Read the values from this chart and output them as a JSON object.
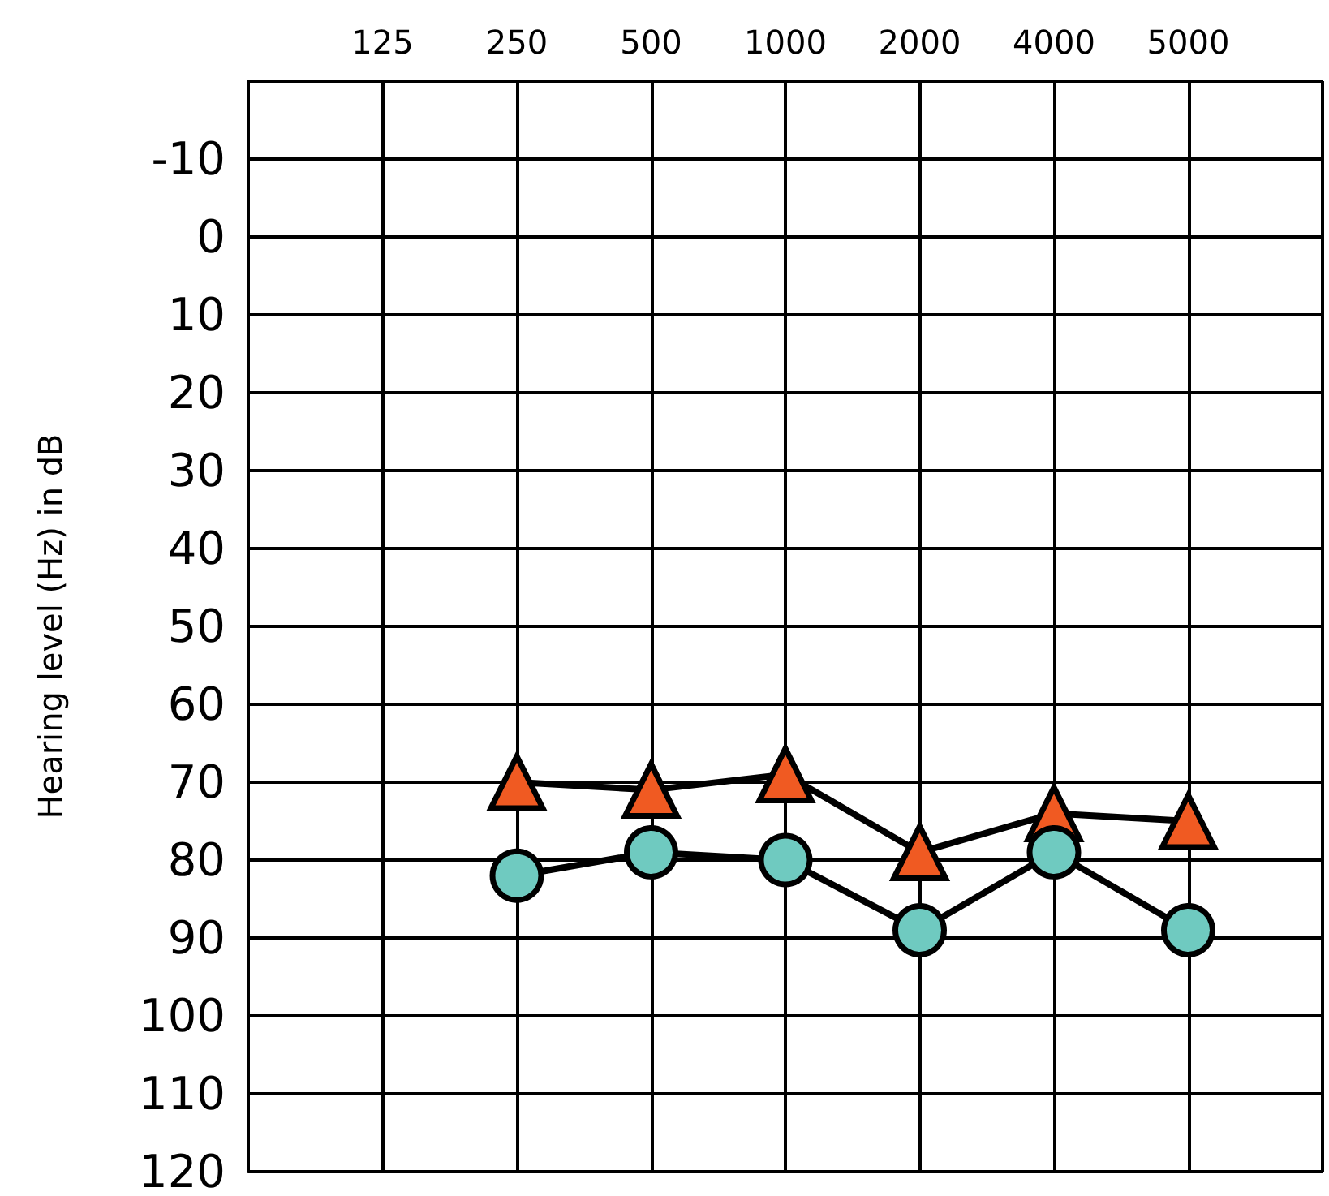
{
  "chart_data": {
    "type": "line",
    "ylabel": "Hearing level (Hz) in dB",
    "categories": [
      null,
      "125",
      "250",
      "500",
      "1000",
      "2000",
      "4000",
      "5000",
      null
    ],
    "series": [
      {
        "color": "#f05a22",
        "marker": "triangle",
        "values": [
          null,
          null,
          70,
          71,
          69,
          79,
          74,
          75,
          null
        ]
      },
      {
        "color": "#6fcac0",
        "marker": "circle",
        "values": [
          null,
          null,
          82,
          79,
          80,
          89,
          79,
          89,
          null
        ]
      }
    ],
    "ylim": [
      120,
      -20
    ],
    "yticks": [
      {
        "value": -20,
        "label": null
      },
      -10,
      0,
      10,
      20,
      30,
      40,
      50,
      60,
      70,
      80,
      90,
      100,
      110,
      120
    ],
    "grid": true
  }
}
